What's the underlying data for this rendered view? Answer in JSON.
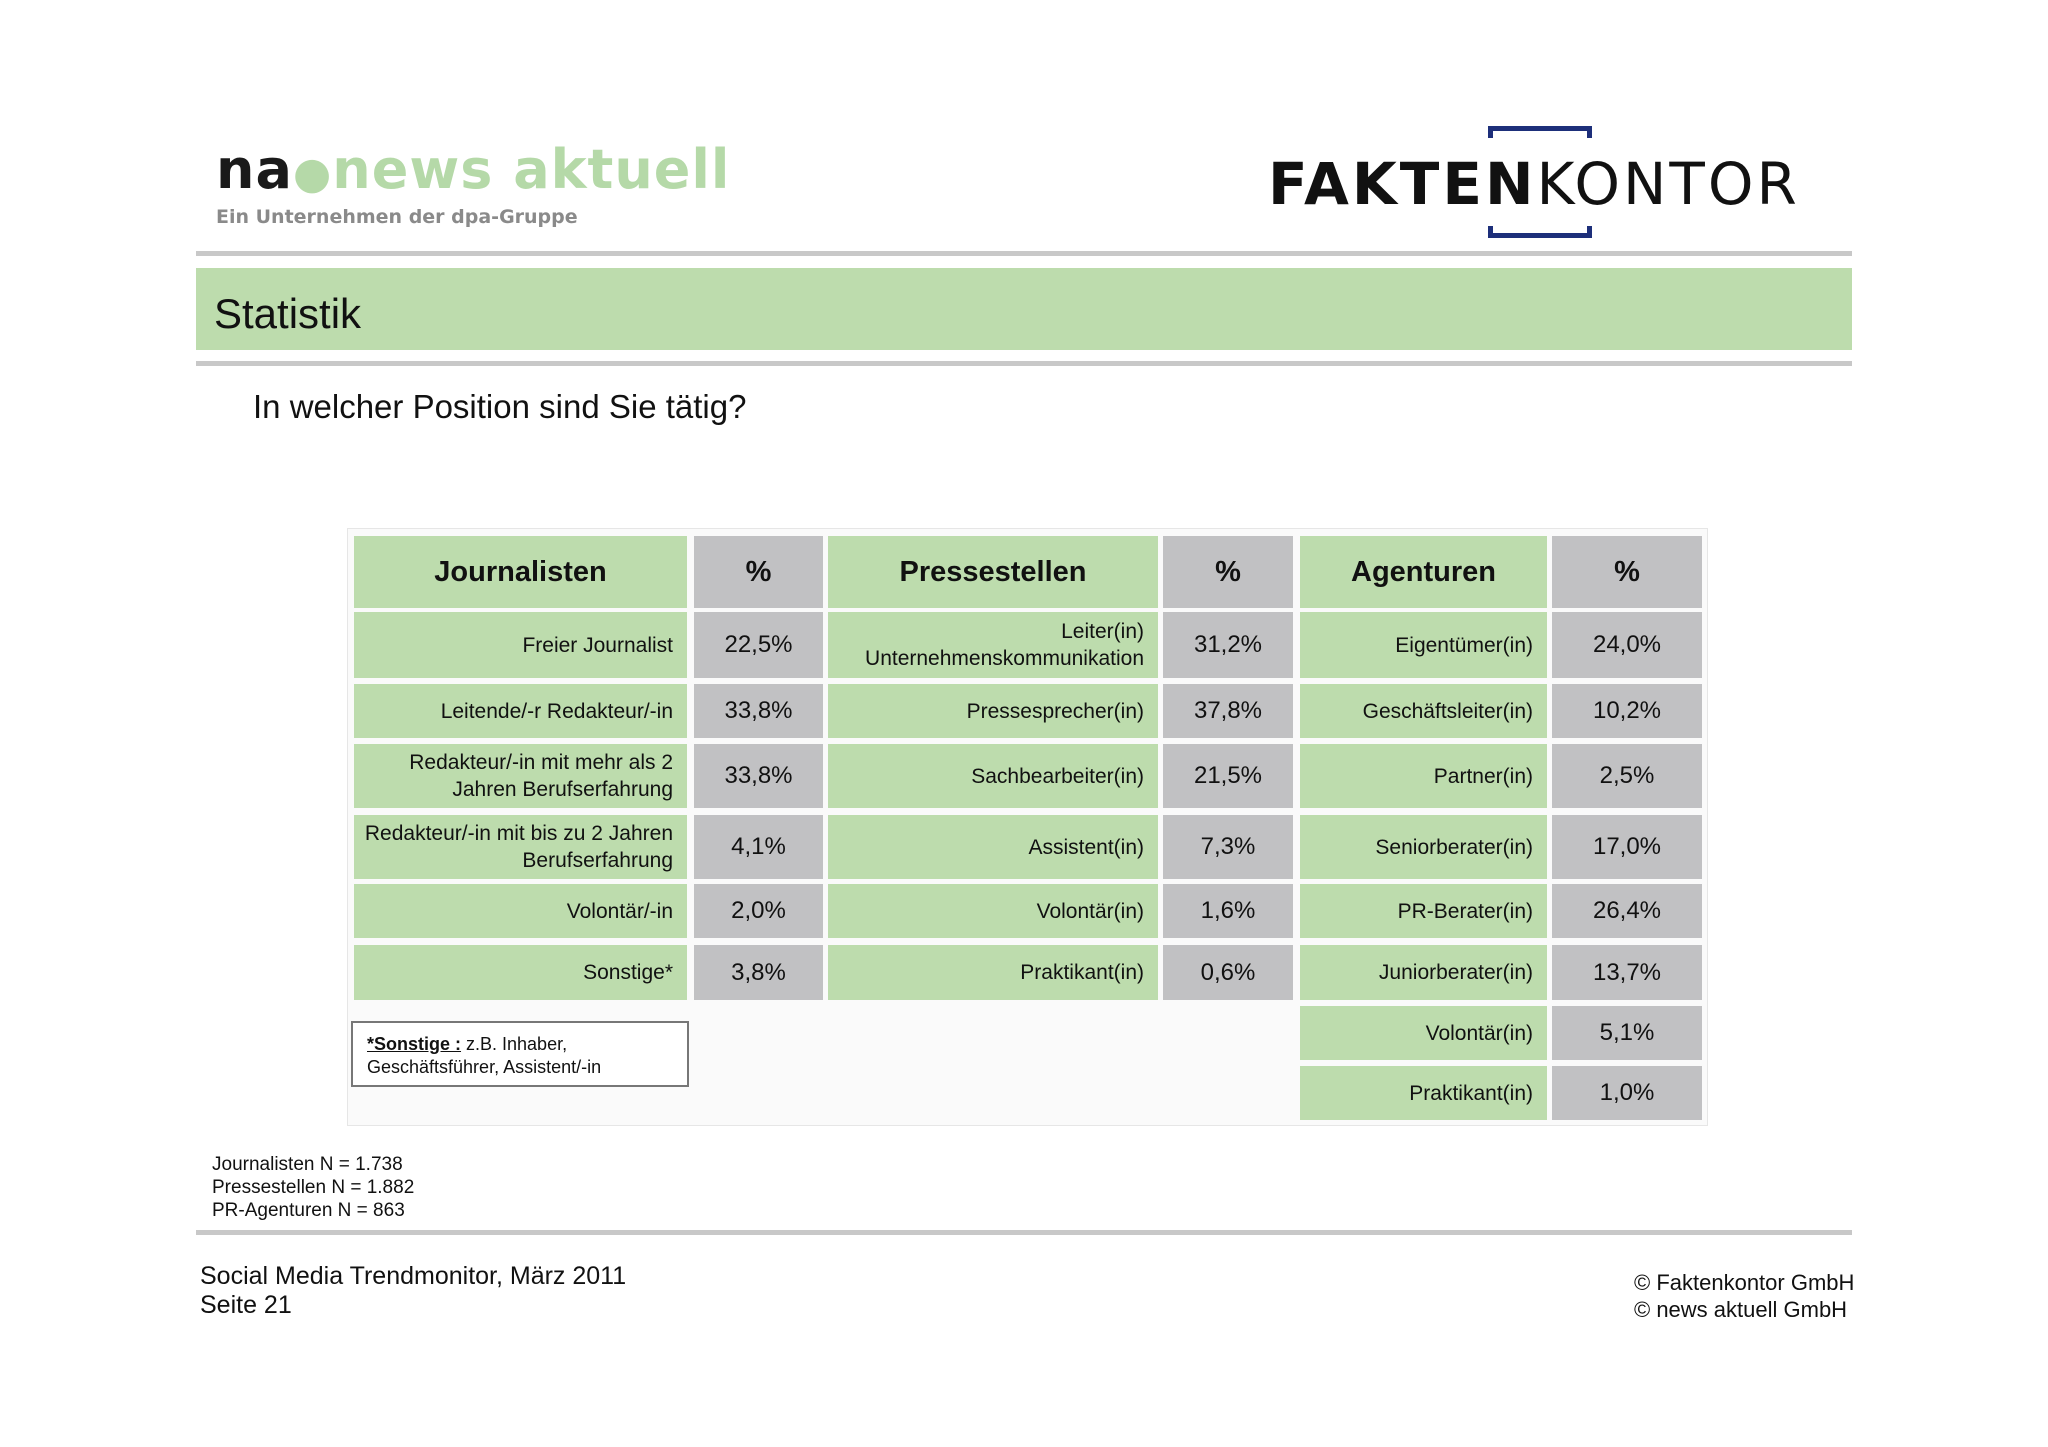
{
  "header": {
    "na_logo": {
      "na": "na",
      "news": "news aktuell",
      "tagline": "Ein Unternehmen der dpa-Gruppe"
    },
    "fk_logo": {
      "bold": "FAKTEN",
      "light": "KONTOR"
    },
    "brand_colors": {
      "green": "#bddcad",
      "grey": "#c1c1c3",
      "navy": "#1d2f7a"
    }
  },
  "title": "Statistik",
  "question": "In welcher Position sind Sie tätig?",
  "table": {
    "headers": [
      "Journalisten",
      "%",
      "Pressestellen",
      "%",
      "Agenturen",
      "%"
    ],
    "journalisten": [
      {
        "label": "Freier Journalist",
        "pct": "22,5%"
      },
      {
        "label": "Leitende/-r Redakteur/-in",
        "pct": "33,8%"
      },
      {
        "label": "Redakteur/-in mit mehr als 2 Jahren Berufserfahrung",
        "pct": "33,8%"
      },
      {
        "label": "Redakteur/-in mit bis zu 2 Jahren Berufserfahrung",
        "pct": "4,1%"
      },
      {
        "label": "Volontär/-in",
        "pct": "2,0%"
      },
      {
        "label": "Sonstige*",
        "pct": "3,8%"
      }
    ],
    "pressestellen": [
      {
        "label": "Leiter(in) Unternehmenskommunikation",
        "pct": "31,2%"
      },
      {
        "label": "Pressesprecher(in)",
        "pct": "37,8%"
      },
      {
        "label": "Sachbearbeiter(in)",
        "pct": "21,5%"
      },
      {
        "label": "Assistent(in)",
        "pct": "7,3%"
      },
      {
        "label": "Volontär(in)",
        "pct": "1,6%"
      },
      {
        "label": "Praktikant(in)",
        "pct": "0,6%"
      }
    ],
    "agenturen": [
      {
        "label": "Eigentümer(in)",
        "pct": "24,0%"
      },
      {
        "label": "Geschäftsleiter(in)",
        "pct": "10,2%"
      },
      {
        "label": "Partner(in)",
        "pct": "2,5%"
      },
      {
        "label": "Seniorberater(in)",
        "pct": "17,0%"
      },
      {
        "label": "PR-Berater(in)",
        "pct": "26,4%"
      },
      {
        "label": "Juniorberater(in)",
        "pct": "13,7%"
      },
      {
        "label": "Volontär(in)",
        "pct": "5,1%"
      },
      {
        "label": "Praktikant(in)",
        "pct": "1,0%"
      }
    ]
  },
  "footnote": {
    "key": "*Sonstige :",
    "text": " z.B. Inhaber, Geschäftsführer, Assistent/-in"
  },
  "sample_sizes": [
    "Journalisten N = 1.738",
    "Pressestellen N = 1.882",
    "PR-Agenturen N = 863"
  ],
  "footer": {
    "left_line1": "Social Media Trendmonitor, März 2011",
    "left_line2": "Seite 21",
    "right_line1": "© Faktenkontor GmbH",
    "right_line2": "© news aktuell GmbH"
  }
}
